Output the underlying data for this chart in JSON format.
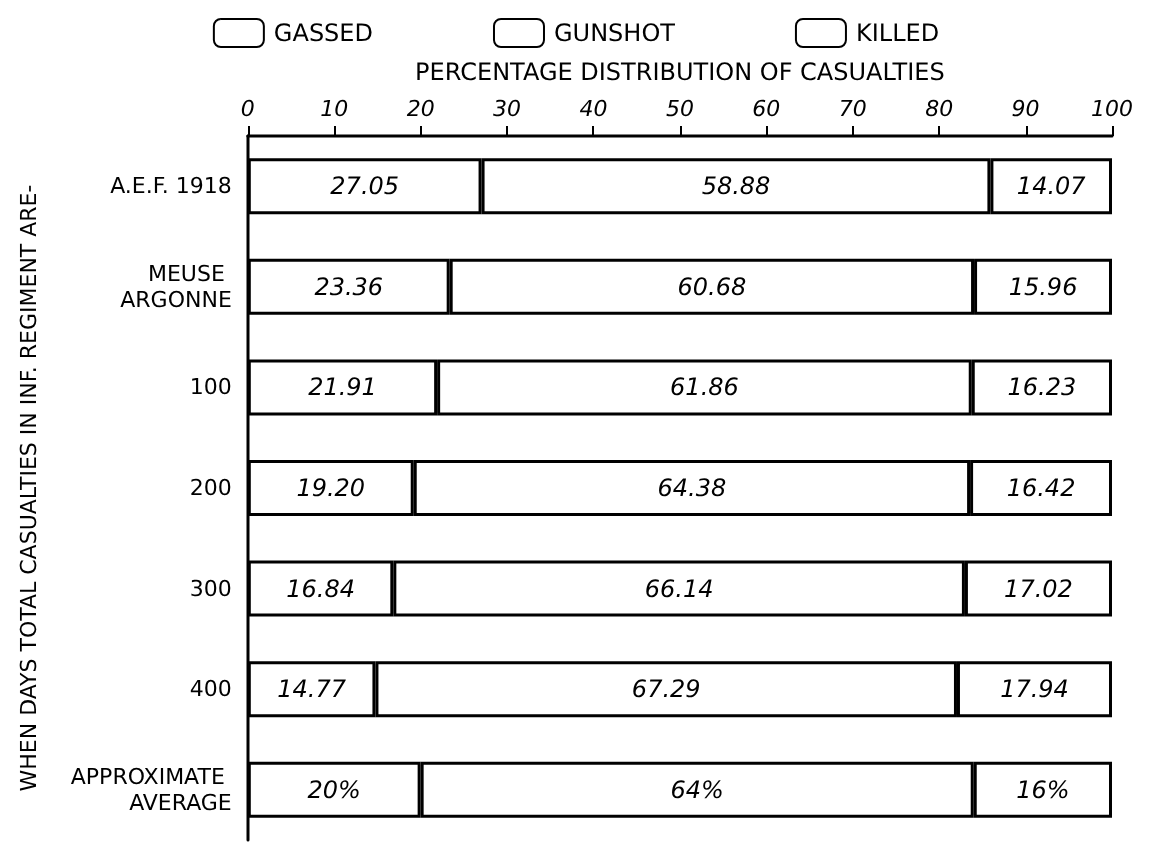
{
  "chart_data": {
    "type": "bar",
    "orientation": "horizontal",
    "stacked": true,
    "xlabel": "PERCENTAGE DISTRIBUTION OF CASUALTIES",
    "ylabel": "WHEN DAYS TOTAL CASUALTIES IN INF. REGIMENT ARE-",
    "categories": [
      "A.E.F. 1918",
      "MEUSE ARGONNE",
      "100",
      "200",
      "300",
      "400",
      "APPROXIMATE AVERAGE"
    ],
    "series": [
      {
        "name": "GASSED",
        "color": "#ffffff",
        "values": [
          27.05,
          23.36,
          21.91,
          19.2,
          16.84,
          14.77,
          20
        ],
        "value_labels": [
          "27.05",
          "23.36",
          "21.91",
          "19.20",
          "16.84",
          "14.77",
          "20%"
        ]
      },
      {
        "name": "GUNSHOT",
        "color": "#ffffff",
        "values": [
          58.88,
          60.68,
          61.86,
          64.38,
          66.14,
          67.29,
          64
        ],
        "value_labels": [
          "58.88",
          "60.68",
          "61.86",
          "64.38",
          "66.14",
          "67.29",
          "64%"
        ]
      },
      {
        "name": "KILLED",
        "color": "#ffffff",
        "values": [
          14.07,
          15.96,
          16.23,
          16.42,
          17.02,
          17.94,
          16
        ],
        "value_labels": [
          "14.07",
          "15.96",
          "16.23",
          "16.42",
          "17.02",
          "17.94",
          "16%"
        ]
      }
    ],
    "xlim": [
      0,
      100
    ],
    "xticks": [
      0,
      10,
      20,
      30,
      40,
      50,
      60,
      70,
      80,
      90,
      100
    ],
    "grid": false,
    "legend": "top"
  }
}
